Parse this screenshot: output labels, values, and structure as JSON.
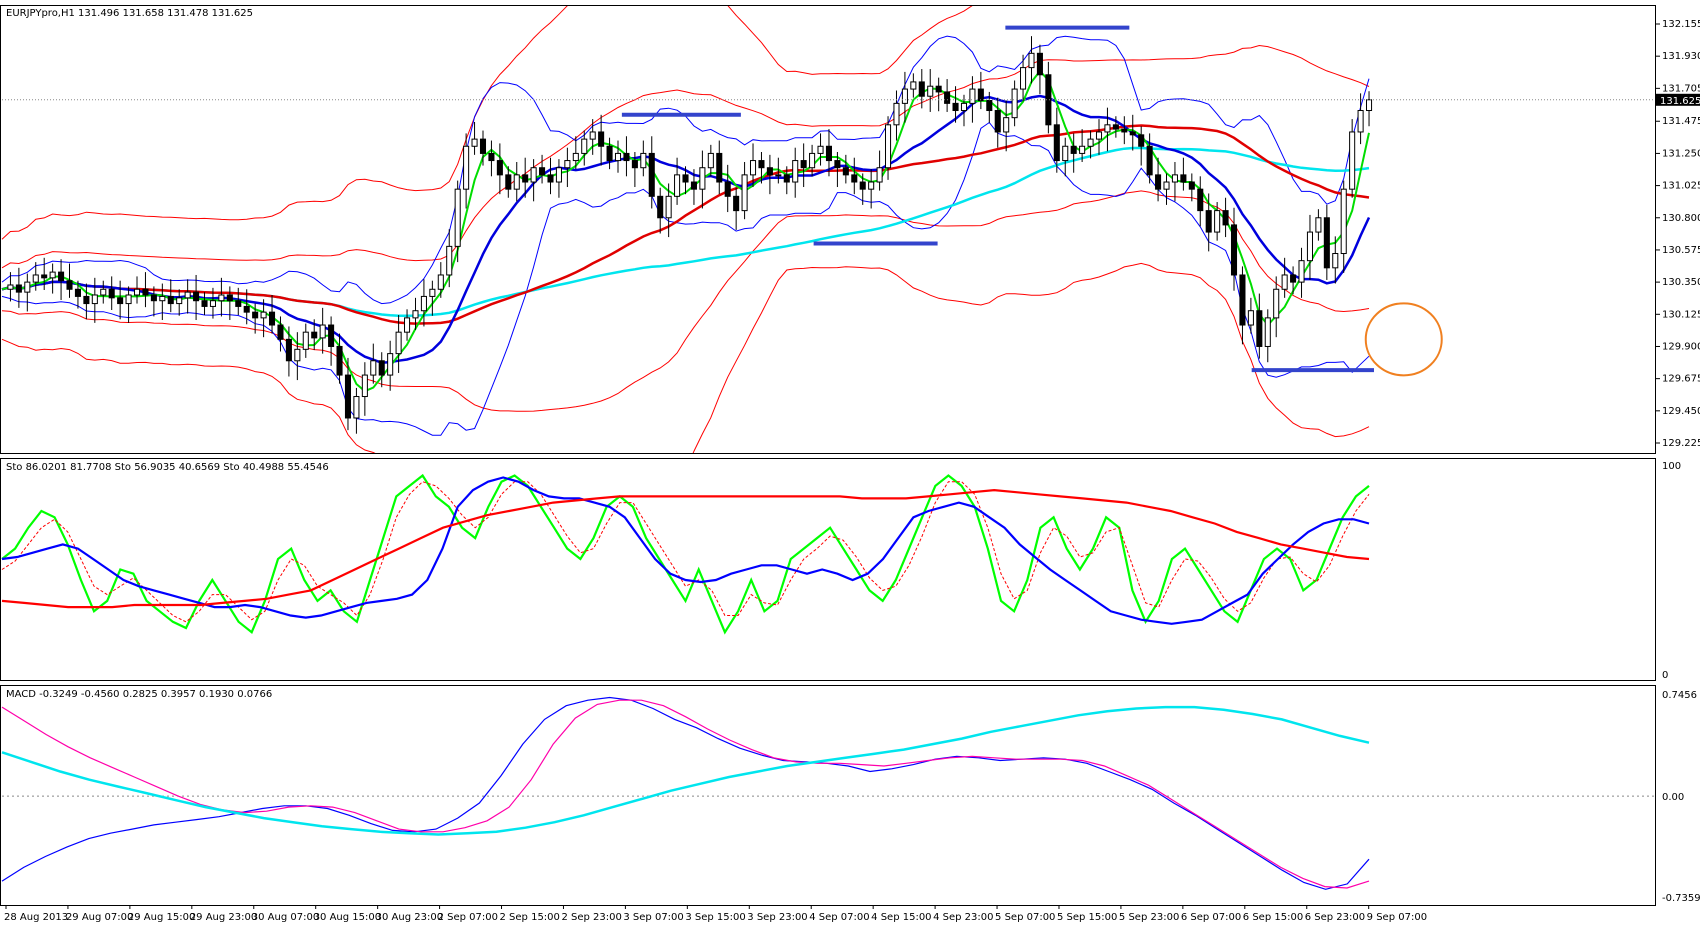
{
  "chart_data": [
    {
      "type": "candlestick",
      "panel": "price",
      "header": "EURJPYpro,H1  131.496 131.658 131.478 131.625",
      "symbol": "EURJPYpro,H1",
      "ohlc": {
        "open": 131.496,
        "high": 131.658,
        "low": 131.478,
        "close": 131.625
      },
      "current_price_label": "131.625",
      "ylim": [
        129.225,
        132.155
      ],
      "y_ticks": [
        "132.155",
        "131.930",
        "131.705",
        "131.475",
        "131.250",
        "131.025",
        "130.800",
        "130.575",
        "130.350",
        "130.125",
        "129.900",
        "129.675",
        "129.450",
        "129.225"
      ],
      "x_ticks": [
        "28 Aug 2013",
        "29 Aug 07:00",
        "29 Aug 15:00",
        "29 Aug 23:00",
        "30 Aug 07:00",
        "30 Aug 15:00",
        "30 Aug 23:00",
        "2 Sep 07:00",
        "2 Sep 15:00",
        "2 Sep 23:00",
        "3 Sep 07:00",
        "3 Sep 15:00",
        "3 Sep 23:00",
        "4 Sep 07:00",
        "4 Sep 15:00",
        "4 Sep 23:00",
        "5 Sep 07:00",
        "5 Sep 15:00",
        "5 Sep 23:00",
        "6 Sep 07:00",
        "6 Sep 15:00",
        "6 Sep 23:00",
        "9 Sep 07:00"
      ],
      "close_series": [
        130.3,
        130.33,
        130.28,
        130.35,
        130.4,
        130.38,
        130.42,
        130.36,
        130.3,
        130.25,
        130.2,
        130.26,
        130.3,
        130.24,
        130.2,
        130.26,
        130.3,
        130.26,
        130.22,
        130.25,
        130.2,
        130.24,
        130.28,
        130.22,
        130.18,
        130.22,
        130.26,
        130.22,
        130.18,
        130.14,
        130.1,
        130.14,
        130.05,
        129.95,
        129.8,
        129.88,
        130.0,
        129.96,
        130.05,
        129.9,
        129.7,
        129.4,
        129.55,
        129.7,
        129.8,
        129.7,
        129.85,
        130.0,
        130.1,
        130.15,
        130.25,
        130.3,
        130.4,
        130.6,
        131.0,
        131.3,
        131.35,
        131.25,
        131.2,
        131.1,
        131.0,
        131.1,
        131.05,
        131.15,
        131.1,
        131.05,
        131.15,
        131.2,
        131.25,
        131.35,
        131.4,
        131.3,
        131.2,
        131.25,
        131.2,
        131.15,
        131.25,
        130.95,
        130.8,
        130.95,
        131.1,
        131.05,
        131.0,
        131.15,
        131.25,
        131.05,
        130.95,
        130.85,
        131.1,
        131.2,
        131.15,
        131.1,
        131.1,
        131.05,
        131.2,
        131.15,
        131.25,
        131.3,
        131.2,
        131.15,
        131.1,
        131.05,
        131.0,
        131.05,
        131.15,
        131.45,
        131.6,
        131.7,
        131.75,
        131.65,
        131.72,
        131.68,
        131.6,
        131.55,
        131.6,
        131.7,
        131.62,
        131.55,
        131.4,
        131.5,
        131.7,
        131.85,
        131.95,
        131.8,
        131.45,
        131.2,
        131.3,
        131.25,
        131.3,
        131.35,
        131.4,
        131.45,
        131.42,
        131.4,
        131.38,
        131.3,
        131.1,
        131.0,
        131.05,
        131.1,
        131.05,
        131.0,
        130.85,
        130.7,
        130.85,
        130.75,
        130.4,
        130.05,
        130.15,
        129.9,
        130.1,
        130.3,
        130.4,
        130.35,
        130.5,
        130.7,
        130.8,
        130.45,
        130.55,
        131.0,
        131.4,
        131.55,
        131.625
      ],
      "annotations": {
        "horizontal_lines": [
          {
            "price": 131.52,
            "x_start": 0.375,
            "x_end": 0.447
          },
          {
            "price": 132.13,
            "x_start": 0.607,
            "x_end": 0.682
          },
          {
            "price": 130.62,
            "x_start": 0.491,
            "x_end": 0.566
          },
          {
            "price": 129.735,
            "x_start": 0.756,
            "x_end": 0.83
          }
        ],
        "circle": {
          "price": 129.95,
          "x": 0.848
        }
      }
    },
    {
      "type": "line",
      "panel": "stochastic",
      "header": "Sto 86.0201 81.7708  Sto 56.9035 40.6569  Sto 40.4988 55.4546",
      "ylim": [
        0,
        100
      ],
      "y_ticks": [
        "100",
        "0"
      ],
      "series": [
        {
          "name": "Sto 1 main",
          "color": "#00ff00",
          "values": [
            55,
            60,
            70,
            78,
            75,
            62,
            45,
            30,
            35,
            50,
            48,
            35,
            30,
            25,
            22,
            35,
            45,
            35,
            25,
            20,
            35,
            55,
            60,
            45,
            35,
            40,
            30,
            25,
            45,
            65,
            85,
            90,
            95,
            85,
            80,
            70,
            65,
            80,
            92,
            95,
            90,
            80,
            70,
            60,
            55,
            65,
            80,
            85,
            80,
            65,
            55,
            45,
            35,
            50,
            35,
            20,
            30,
            45,
            30,
            35,
            55,
            60,
            65,
            70,
            60,
            50,
            40,
            35,
            45,
            60,
            75,
            90,
            95,
            90,
            80,
            60,
            35,
            30,
            45,
            70,
            75,
            60,
            50,
            60,
            75,
            70,
            40,
            25,
            35,
            55,
            60,
            50,
            40,
            30,
            25,
            40,
            55,
            60,
            55,
            40,
            45,
            60,
            75,
            85,
            90
          ]
        },
        {
          "name": "Sto 1 signal",
          "color": "#ff0000",
          "dashed": true,
          "values": [
            50,
            54,
            62,
            70,
            74,
            68,
            55,
            42,
            38,
            42,
            46,
            40,
            34,
            28,
            25,
            30,
            38,
            38,
            32,
            26,
            30,
            45,
            55,
            52,
            42,
            38,
            34,
            28,
            38,
            55,
            75,
            86,
            92,
            90,
            84,
            76,
            70,
            75,
            86,
            92,
            92,
            86,
            76,
            66,
            58,
            60,
            72,
            82,
            82,
            72,
            62,
            52,
            42,
            45,
            40,
            28,
            28,
            38,
            34,
            33,
            45,
            55,
            60,
            66,
            64,
            56,
            46,
            40,
            42,
            52,
            66,
            82,
            92,
            92,
            86,
            70,
            48,
            36,
            40,
            58,
            70,
            66,
            56,
            58,
            68,
            70,
            52,
            34,
            32,
            45,
            55,
            54,
            46,
            36,
            30,
            34,
            46,
            55,
            56,
            48,
            44,
            52,
            66,
            78,
            86
          ]
        },
        {
          "name": "Sto 2 main",
          "color": "#0000ff",
          "values": [
            55,
            56,
            58,
            60,
            62,
            60,
            55,
            50,
            45,
            42,
            40,
            38,
            36,
            34,
            32,
            32,
            33,
            32,
            30,
            28,
            27,
            28,
            30,
            32,
            34,
            35,
            36,
            38,
            45,
            60,
            80,
            88,
            92,
            94,
            92,
            88,
            85,
            84,
            84,
            82,
            80,
            75,
            65,
            55,
            48,
            45,
            44,
            45,
            48,
            50,
            52,
            52,
            50,
            48,
            50,
            48,
            45,
            48,
            55,
            65,
            75,
            78,
            80,
            82,
            80,
            75,
            70,
            62,
            56,
            50,
            45,
            40,
            35,
            30,
            28,
            26,
            25,
            24,
            25,
            26,
            30,
            34,
            38,
            48,
            55,
            62,
            68,
            72,
            74,
            74,
            72
          ]
        },
        {
          "name": "Sto 3 main",
          "color": "#ff0000",
          "values": [
            35,
            34,
            33,
            32,
            32,
            32,
            33,
            33,
            33,
            33,
            34,
            35,
            36,
            38,
            40,
            45,
            50,
            55,
            60,
            65,
            70,
            73,
            76,
            78,
            80,
            82,
            83,
            84,
            85,
            85,
            85,
            85,
            85,
            85,
            85,
            85,
            85,
            85,
            85,
            84,
            84,
            84,
            85,
            86,
            87,
            88,
            87,
            86,
            85,
            84,
            83,
            82,
            80,
            78,
            75,
            72,
            68,
            65,
            62,
            60,
            58,
            56,
            55
          ]
        }
      ]
    },
    {
      "type": "line",
      "panel": "macd",
      "header": "MACD -0.3249 -0.4560 0.2825 0.3957 0.1930 0.0766",
      "ylim": [
        -0.7359,
        0.7456
      ],
      "y_ticks": [
        "0.7456",
        "0.00",
        "-0.7359"
      ],
      "series": [
        {
          "name": "MACD blue",
          "color": "#0000ff",
          "values": [
            -0.62,
            -0.52,
            -0.44,
            -0.37,
            -0.31,
            -0.27,
            -0.24,
            -0.21,
            -0.19,
            -0.17,
            -0.15,
            -0.12,
            -0.09,
            -0.07,
            -0.07,
            -0.09,
            -0.14,
            -0.2,
            -0.25,
            -0.26,
            -0.24,
            -0.16,
            -0.05,
            0.15,
            0.38,
            0.56,
            0.66,
            0.7,
            0.72,
            0.7,
            0.64,
            0.56,
            0.5,
            0.42,
            0.35,
            0.3,
            0.26,
            0.25,
            0.24,
            0.22,
            0.18,
            0.2,
            0.23,
            0.27,
            0.29,
            0.28,
            0.26,
            0.27,
            0.28,
            0.27,
            0.24,
            0.18,
            0.12,
            0.05,
            -0.05,
            -0.14,
            -0.24,
            -0.34,
            -0.44,
            -0.54,
            -0.63,
            -0.68,
            -0.64,
            -0.46
          ]
        },
        {
          "name": "MACD magenta",
          "color": "#ff00aa",
          "values": [
            0.65,
            0.55,
            0.45,
            0.36,
            0.28,
            0.21,
            0.14,
            0.07,
            0.0,
            -0.06,
            -0.1,
            -0.12,
            -0.11,
            -0.08,
            -0.07,
            -0.08,
            -0.12,
            -0.18,
            -0.24,
            -0.26,
            -0.26,
            -0.23,
            -0.18,
            -0.08,
            0.12,
            0.38,
            0.57,
            0.67,
            0.7,
            0.7,
            0.66,
            0.58,
            0.49,
            0.41,
            0.34,
            0.28,
            0.25,
            0.24,
            0.24,
            0.23,
            0.22,
            0.24,
            0.26,
            0.28,
            0.29,
            0.28,
            0.27,
            0.27,
            0.27,
            0.26,
            0.22,
            0.15,
            0.08,
            -0.02,
            -0.12,
            -0.22,
            -0.32,
            -0.42,
            -0.52,
            -0.6,
            -0.66,
            -0.67,
            -0.62
          ]
        },
        {
          "name": "MACD cyan",
          "color": "#00e5ee",
          "values": [
            0.32,
            0.25,
            0.18,
            0.12,
            0.07,
            0.02,
            -0.03,
            -0.08,
            -0.12,
            -0.16,
            -0.19,
            -0.22,
            -0.24,
            -0.26,
            -0.27,
            -0.28,
            -0.27,
            -0.26,
            -0.23,
            -0.19,
            -0.14,
            -0.08,
            -0.02,
            0.04,
            0.09,
            0.14,
            0.18,
            0.22,
            0.25,
            0.28,
            0.31,
            0.34,
            0.38,
            0.42,
            0.47,
            0.51,
            0.55,
            0.59,
            0.62,
            0.64,
            0.65,
            0.65,
            0.63,
            0.6,
            0.56,
            0.5,
            0.44,
            0.39
          ]
        }
      ]
    }
  ]
}
